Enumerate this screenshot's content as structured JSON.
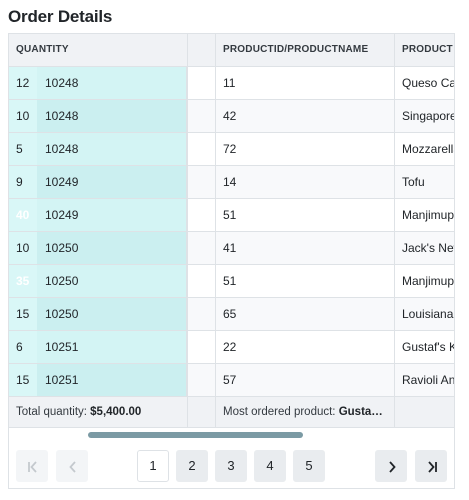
{
  "title": "Order Details",
  "columns": {
    "quantity": "QUANTITY",
    "productid": "PRODUCTID/PRODUCTNAME",
    "product": "PRODUCT"
  },
  "rows": [
    {
      "quantity": "12",
      "orderid": "10248",
      "productid": "11",
      "product": "Queso Cabrales"
    },
    {
      "quantity": "10",
      "orderid": "10248",
      "productid": "42",
      "product": "Singaporean Hokkien Fried Mee"
    },
    {
      "quantity": "5",
      "orderid": "10248",
      "productid": "72",
      "product": "Mozzarella di Giovanni"
    },
    {
      "quantity": "9",
      "orderid": "10249",
      "productid": "14",
      "product": "Tofu"
    },
    {
      "quantity": "40",
      "orderid": "10249",
      "productid": "51",
      "product": "Manjimup Dried Apples"
    },
    {
      "quantity": "10",
      "orderid": "10250",
      "productid": "41",
      "product": "Jack's New England Clam Chowder"
    },
    {
      "quantity": "35",
      "orderid": "10250",
      "productid": "51",
      "product": "Manjimup Dried Apples"
    },
    {
      "quantity": "15",
      "orderid": "10250",
      "productid": "65",
      "product": "Louisiana Fiery Hot Pepper Sauce"
    },
    {
      "quantity": "6",
      "orderid": "10251",
      "productid": "22",
      "product": "Gustaf's Knäckebröd"
    },
    {
      "quantity": "15",
      "orderid": "10251",
      "productid": "57",
      "product": "Ravioli Angelo"
    }
  ],
  "footer": {
    "total_label": "Total quantity: ",
    "total_value": "$5,400.00",
    "most_label": "Most ordered product: ",
    "most_value": "Gusta…"
  },
  "pager": {
    "pages": [
      "1",
      "2",
      "3",
      "4",
      "5"
    ],
    "current": "1",
    "icons": {
      "first": "first-page-icon",
      "prev": "previous-page-icon",
      "next": "next-page-icon",
      "last": "last-page-icon"
    }
  }
}
